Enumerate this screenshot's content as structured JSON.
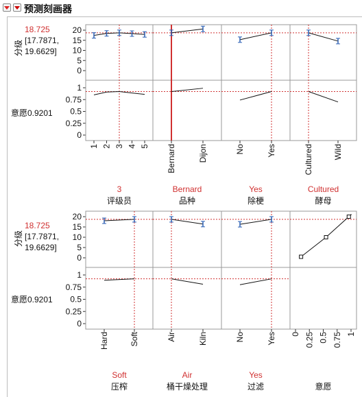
{
  "title": "预测刻画器",
  "colors": {
    "accent": "#d03030",
    "error_bar": "#2b5fb4"
  },
  "panels": [
    {
      "response": {
        "name": "分级",
        "value": "18.725",
        "ci_low": "[17.7871,",
        "ci_high": "19.6629]"
      },
      "desirability": {
        "label": "意愿0.9201"
      },
      "y_ticks": [
        "20",
        "15",
        "10",
        "5",
        "0"
      ],
      "d_ticks": [
        "1",
        "0.75",
        "0.5",
        "0.25",
        "0"
      ],
      "factors": [
        {
          "name": "评级员",
          "current": "3",
          "ticks": [
            "1",
            "2",
            "3",
            "4",
            "5"
          ]
        },
        {
          "name": "品种",
          "current": "Bernard",
          "ticks": [
            "Bernard",
            "Dijon"
          ]
        },
        {
          "name": "除梗",
          "current": "Yes",
          "ticks": [
            "No",
            "Yes"
          ]
        },
        {
          "name": "酵母",
          "current": "Cultured",
          "ticks": [
            "Cultured",
            "Wild"
          ]
        }
      ]
    },
    {
      "response": {
        "name": "分级",
        "value": "18.725",
        "ci_low": "[17.7871,",
        "ci_high": "19.6629]"
      },
      "desirability": {
        "label": "意愿0.9201"
      },
      "y_ticks": [
        "20",
        "15",
        "10",
        "5",
        "0"
      ],
      "d_ticks": [
        "1",
        "0.75",
        "0.5",
        "0.25",
        "0"
      ],
      "factors": [
        {
          "name": "压榨",
          "current": "Soft",
          "ticks": [
            "Hard",
            "Soft"
          ]
        },
        {
          "name": "桶干燥处理",
          "current": "Air",
          "ticks": [
            "Air",
            "Kiln"
          ]
        },
        {
          "name": "过滤",
          "current": "Yes",
          "ticks": [
            "No",
            "Yes"
          ]
        },
        {
          "name": "意愿",
          "current": "",
          "ticks": [
            "0",
            "0.25",
            "0.5",
            "0.75",
            "1"
          ]
        }
      ]
    }
  ]
}
